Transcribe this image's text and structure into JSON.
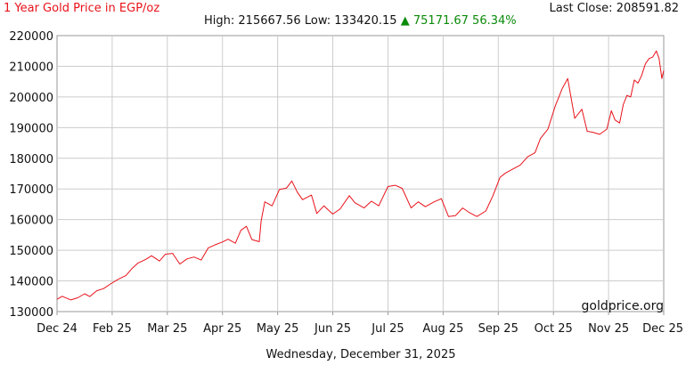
{
  "header": {
    "title": "1 Year Gold Price in EGP/oz",
    "last_close_label": "Last Close:",
    "last_close_value": "208591.82",
    "high_label": "High:",
    "high_value": "215667.56",
    "low_label": "Low:",
    "low_value": "133420.15",
    "change_arrow": "▲",
    "change_value": "75171.67",
    "change_percent": "56.34%"
  },
  "footer": {
    "date": "Wednesday, December 31, 2025",
    "watermark": "goldprice.org"
  },
  "colors": {
    "line": "#e8121a",
    "grid": "#cccccc",
    "up": "#0a8a0a"
  },
  "chart_data": {
    "type": "line",
    "title": "1 Year Gold Price in EGP/oz",
    "xlabel": "",
    "ylabel": "",
    "ylim": [
      130000,
      220000
    ],
    "y_ticks": [
      130000,
      140000,
      150000,
      160000,
      170000,
      180000,
      190000,
      200000,
      210000,
      220000
    ],
    "x_ticks": [
      "Dec 24",
      "Feb 25",
      "Mar 25",
      "Apr 25",
      "May 25",
      "Jun 25",
      "Jul 25",
      "Aug 25",
      "Sep 25",
      "Oct 25",
      "Nov 25",
      "Dec 25"
    ],
    "grid": true,
    "legend": "none",
    "series": [
      {
        "x": [
          "2024-12-31",
          "2025-01-03",
          "2025-01-08",
          "2025-01-12",
          "2025-01-16",
          "2025-01-19",
          "2025-01-23",
          "2025-01-27",
          "2025-01-31",
          "2025-02-04",
          "2025-02-08",
          "2025-02-11",
          "2025-02-14",
          "2025-02-18",
          "2025-02-21",
          "2025-02-25",
          "2025-02-28",
          "2025-03-04",
          "2025-03-08",
          "2025-03-12",
          "2025-03-16",
          "2025-03-20",
          "2025-03-24",
          "2025-03-28",
          "2025-04-01",
          "2025-04-04",
          "2025-04-08",
          "2025-04-11",
          "2025-04-14",
          "2025-04-17",
          "2025-04-21",
          "2025-04-22",
          "2025-04-24",
          "2025-04-28",
          "2025-05-02",
          "2025-05-06",
          "2025-05-09",
          "2025-05-12",
          "2025-05-15",
          "2025-05-20",
          "2025-05-23",
          "2025-05-27",
          "2025-06-01",
          "2025-06-05",
          "2025-06-10",
          "2025-06-13",
          "2025-06-18",
          "2025-06-22",
          "2025-06-26",
          "2025-07-01",
          "2025-07-05",
          "2025-07-09",
          "2025-07-14",
          "2025-07-18",
          "2025-07-22",
          "2025-07-27",
          "2025-07-31",
          "2025-08-04",
          "2025-08-08",
          "2025-08-12",
          "2025-08-16",
          "2025-08-20",
          "2025-08-25",
          "2025-08-29",
          "2025-09-02",
          "2025-09-05",
          "2025-09-09",
          "2025-09-13",
          "2025-09-17",
          "2025-09-21",
          "2025-09-24",
          "2025-09-28",
          "2025-10-02",
          "2025-10-06",
          "2025-10-09",
          "2025-10-13",
          "2025-10-17",
          "2025-10-20",
          "2025-10-23",
          "2025-10-27",
          "2025-10-31",
          "2025-11-04",
          "2025-11-08",
          "2025-11-13",
          "2025-11-17",
          "2025-11-21",
          "2025-11-25",
          "2025-11-29",
          "2025-12-03",
          "2025-12-07",
          "2025-12-11",
          "2025-12-15",
          "2025-12-19",
          "2025-12-23",
          "2025-12-26",
          "2025-12-29",
          "2025-12-31"
        ],
        "y": [
          134000,
          135000,
          133800,
          134500,
          135800,
          134900,
          136800,
          137500,
          139000,
          140500,
          141800,
          144000,
          145800,
          147000,
          148200,
          146500,
          148700,
          149000,
          145500,
          147200,
          147800,
          146800,
          150800,
          151800,
          152700,
          153600,
          152300,
          156500,
          157800,
          153500,
          152800,
          159500,
          165800,
          164500,
          169800,
          170300,
          172600,
          169000,
          166500,
          168000,
          162000,
          164500,
          161800,
          163500,
          167800,
          165500,
          163800,
          166000,
          164500,
          170800,
          171200,
          170200,
          163800,
          165800,
          164200,
          165800,
          166800,
          161000,
          161300,
          163800,
          162200,
          161000,
          162800,
          167800,
          173800,
          175200,
          176500,
          177800,
          180500,
          181800,
          186500,
          189500,
          197000,
          202800,
          206000,
          193000,
          196000,
          188800,
          188500,
          187800,
          189500,
          195500,
          192500,
          191500,
          197500,
          200500,
          200000,
          205500,
          204500,
          207000,
          210800,
          212500,
          213000,
          215000,
          212500,
          206000,
          208591.82
        ]
      }
    ]
  }
}
